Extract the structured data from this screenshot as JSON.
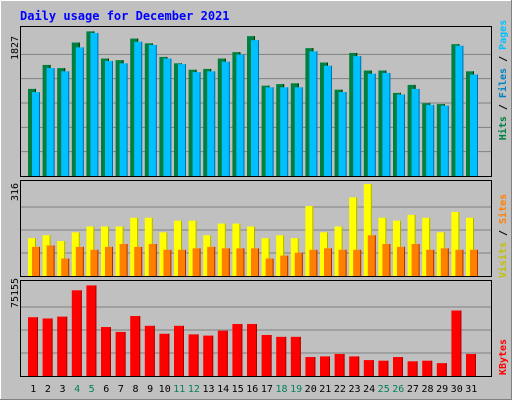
{
  "chart_data": {
    "type": "bar",
    "title": "Daily usage for December 2021",
    "categories": [
      "1",
      "2",
      "3",
      "4",
      "5",
      "6",
      "7",
      "8",
      "9",
      "10",
      "11",
      "12",
      "13",
      "14",
      "15",
      "16",
      "17",
      "18",
      "19",
      "20",
      "21",
      "22",
      "23",
      "24",
      "25",
      "26",
      "27",
      "28",
      "29",
      "30",
      "31"
    ],
    "weekend_days": [
      "4",
      "5",
      "11",
      "12",
      "18",
      "19",
      "25",
      "26"
    ],
    "panels": [
      {
        "id": "top",
        "max_label": "1827",
        "ylim": [
          0,
          1827
        ],
        "legend": [
          {
            "text": "Hits",
            "color": "#008040"
          },
          {
            "text": " / ",
            "color": "#000000"
          },
          {
            "text": "Files",
            "color": "#0080c0"
          },
          {
            "text": " / ",
            "color": "#000000"
          },
          {
            "text": "Pages",
            "color": "#00c0ff"
          }
        ],
        "series": [
          {
            "name": "Hits",
            "color": "#008040",
            "values": [
              1090,
              1390,
              1350,
              1670,
              1810,
              1470,
              1450,
              1720,
              1660,
              1490,
              1410,
              1330,
              1340,
              1470,
              1550,
              1750,
              1130,
              1150,
              1160,
              1600,
              1420,
              1080,
              1540,
              1320,
              1320,
              1040,
              1140,
              910,
              900,
              1650,
              1310
            ]
          },
          {
            "name": "Files",
            "color": "#00c0ff",
            "values": [
              1050,
              1350,
              1310,
              1610,
              1790,
              1440,
              1410,
              1680,
              1640,
              1470,
              1400,
              1300,
              1310,
              1430,
              1520,
              1700,
              1110,
              1110,
              1110,
              1560,
              1380,
              1050,
              1500,
              1280,
              1290,
              1020,
              1090,
              890,
              880,
              1630,
              1270
            ]
          }
        ]
      },
      {
        "id": "middle",
        "max_label": "316",
        "ylim": [
          0,
          316
        ],
        "legend": [
          {
            "text": "Visits",
            "color": "#c0c000"
          },
          {
            "text": " / ",
            "color": "#000000"
          },
          {
            "text": "Sites",
            "color": "#ff8000"
          }
        ],
        "series": [
          {
            "name": "Visits",
            "color": "#ffff00",
            "values": [
              130,
              140,
              120,
              150,
              170,
              170,
              170,
              200,
              200,
              150,
              190,
              190,
              140,
              180,
              180,
              170,
              130,
              140,
              130,
              240,
              150,
              170,
              270,
              316,
              200,
              190,
              210,
              200,
              150,
              220,
              200
            ]
          },
          {
            "name": "Sites",
            "color": "#ff8000",
            "values": [
              100,
              105,
              60,
              100,
              90,
              100,
              110,
              100,
              110,
              90,
              90,
              95,
              100,
              95,
              95,
              95,
              60,
              70,
              80,
              90,
              95,
              90,
              90,
              140,
              110,
              100,
              110,
              90,
              95,
              90,
              90
            ]
          }
        ]
      },
      {
        "id": "bottom",
        "max_label": "75155",
        "ylim": [
          0,
          75155
        ],
        "legend": [
          {
            "text": "KBytes",
            "color": "#ff0000"
          }
        ],
        "series": [
          {
            "name": "KBytes",
            "color": "#ff0000",
            "values": [
              48000,
              47000,
              48500,
              70000,
              74000,
              40000,
              36000,
              49000,
              41000,
              34500,
              41000,
              34000,
              33000,
              37000,
              42500,
              42500,
              33500,
              32000,
              32000,
              15500,
              16000,
              18000,
              16000,
              13000,
              12500,
              15500,
              12000,
              12500,
              10500,
              53500,
              18000
            ]
          }
        ]
      }
    ]
  }
}
